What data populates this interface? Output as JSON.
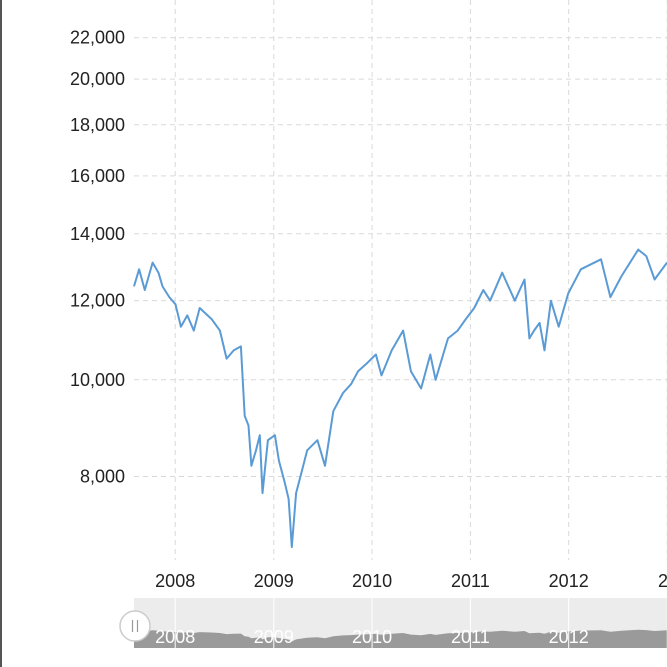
{
  "chart_data": {
    "type": "line",
    "title": "",
    "xlabel": "",
    "ylabel": "",
    "y_scale": "log",
    "ylim": [
      6600,
      24000
    ],
    "xlim": [
      "2007-08-01",
      "2012-12-31"
    ],
    "grid": true,
    "line_color": "#5b9bd5",
    "y_ticks": [
      {
        "value": 8000,
        "label": "8,000"
      },
      {
        "value": 10000,
        "label": "10,000"
      },
      {
        "value": 12000,
        "label": "12,000"
      },
      {
        "value": 14000,
        "label": "14,000"
      },
      {
        "value": 16000,
        "label": "16,000"
      },
      {
        "value": 18000,
        "label": "18,000"
      },
      {
        "value": 20000,
        "label": "20,000"
      },
      {
        "value": 22000,
        "label": "22,000"
      }
    ],
    "x_ticks": [
      {
        "date": "2008-01-01",
        "label": "2008"
      },
      {
        "date": "2009-01-01",
        "label": "2009"
      },
      {
        "date": "2010-01-01",
        "label": "2010"
      },
      {
        "date": "2011-01-01",
        "label": "2011"
      },
      {
        "date": "2012-01-01",
        "label": "2012"
      },
      {
        "date": "2013-01-01",
        "label": "2"
      }
    ],
    "navigator_labels": [
      "2008",
      "2009",
      "2010",
      "2011",
      "2012"
    ],
    "series": [
      {
        "values": [
          [
            "2007-08-01",
            12400
          ],
          [
            "2007-08-20",
            12900
          ],
          [
            "2007-09-10",
            12300
          ],
          [
            "2007-10-09",
            13100
          ],
          [
            "2007-10-31",
            12800
          ],
          [
            "2007-11-15",
            12400
          ],
          [
            "2007-12-10",
            12100
          ],
          [
            "2008-01-02",
            11900
          ],
          [
            "2008-01-22",
            11300
          ],
          [
            "2008-02-15",
            11600
          ],
          [
            "2008-03-10",
            11200
          ],
          [
            "2008-04-01",
            11800
          ],
          [
            "2008-05-15",
            11500
          ],
          [
            "2008-06-15",
            11200
          ],
          [
            "2008-07-10",
            10500
          ],
          [
            "2008-08-05",
            10700
          ],
          [
            "2008-09-01",
            10800
          ],
          [
            "2008-09-15",
            9200
          ],
          [
            "2008-09-29",
            9000
          ],
          [
            "2008-10-10",
            8200
          ],
          [
            "2008-10-27",
            8500
          ],
          [
            "2008-11-10",
            8800
          ],
          [
            "2008-11-20",
            7700
          ],
          [
            "2008-12-10",
            8700
          ],
          [
            "2009-01-05",
            8800
          ],
          [
            "2009-01-20",
            8300
          ],
          [
            "2009-02-10",
            7900
          ],
          [
            "2009-02-25",
            7600
          ],
          [
            "2009-03-03",
            7200
          ],
          [
            "2009-03-09",
            6800
          ],
          [
            "2009-03-25",
            7700
          ],
          [
            "2009-04-15",
            8100
          ],
          [
            "2009-05-05",
            8500
          ],
          [
            "2009-06-12",
            8700
          ],
          [
            "2009-07-10",
            8200
          ],
          [
            "2009-08-10",
            9300
          ],
          [
            "2009-09-15",
            9700
          ],
          [
            "2009-10-15",
            9900
          ],
          [
            "2009-11-10",
            10200
          ],
          [
            "2009-12-15",
            10400
          ],
          [
            "2010-01-15",
            10600
          ],
          [
            "2010-02-05",
            10100
          ],
          [
            "2010-03-15",
            10700
          ],
          [
            "2010-04-26",
            11200
          ],
          [
            "2010-05-25",
            10200
          ],
          [
            "2010-07-02",
            9800
          ],
          [
            "2010-08-05",
            10600
          ],
          [
            "2010-08-25",
            10000
          ],
          [
            "2010-10-10",
            11000
          ],
          [
            "2010-11-15",
            11200
          ],
          [
            "2010-12-15",
            11500
          ],
          [
            "2011-01-15",
            11800
          ],
          [
            "2011-02-18",
            12300
          ],
          [
            "2011-03-15",
            12000
          ],
          [
            "2011-04-29",
            12800
          ],
          [
            "2011-06-15",
            12000
          ],
          [
            "2011-07-21",
            12600
          ],
          [
            "2011-08-08",
            11000
          ],
          [
            "2011-08-25",
            11200
          ],
          [
            "2011-09-15",
            11400
          ],
          [
            "2011-10-03",
            10700
          ],
          [
            "2011-10-27",
            12000
          ],
          [
            "2011-11-25",
            11300
          ],
          [
            "2011-12-30",
            12200
          ],
          [
            "2012-02-15",
            12900
          ],
          [
            "2012-04-30",
            13200
          ],
          [
            "2012-06-04",
            12100
          ],
          [
            "2012-07-15",
            12700
          ],
          [
            "2012-09-15",
            13500
          ],
          [
            "2012-10-15",
            13300
          ],
          [
            "2012-11-15",
            12600
          ],
          [
            "2012-12-31",
            13100
          ]
        ]
      }
    ]
  }
}
